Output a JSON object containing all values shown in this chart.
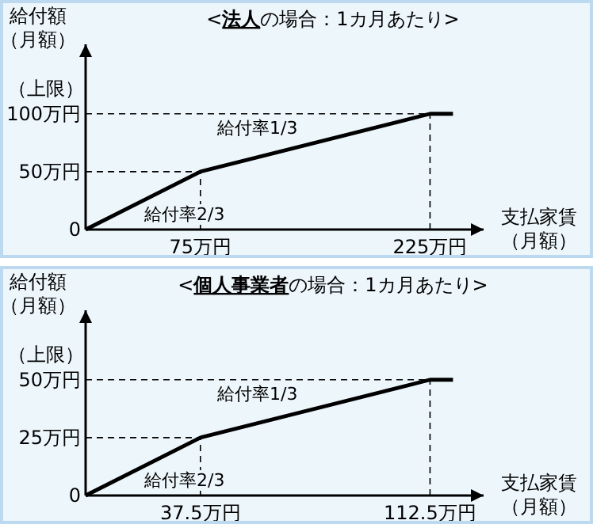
{
  "chart_data": [
    {
      "type": "line",
      "title": "<**法人**の場合：1カ月あたり>",
      "xlabel": "支払家賃（月額）",
      "ylabel": "給付額（月額）",
      "x": [
        0,
        75,
        225,
        240
      ],
      "series": [
        {
          "color": "#000000",
          "values": [
            0,
            50,
            100,
            100
          ]
        }
      ],
      "xlim": [
        0,
        260
      ],
      "ylim": [
        0,
        160
      ],
      "xticks": [
        {
          "value": 75,
          "label": "75万円"
        },
        {
          "value": 225,
          "label": "225万円"
        }
      ],
      "yticks": [
        0,
        {
          "value": 50,
          "label": "50万円"
        },
        {
          "value": 100,
          "label": "100万円"
        }
      ],
      "ref_lines": [
        {
          "axis": "y",
          "value": 50,
          "line_style": "dashed"
        },
        {
          "axis": "y",
          "value": 100,
          "line_style": "dashed"
        },
        {
          "axis": "x",
          "value": 75,
          "line_style": "dashed"
        },
        {
          "axis": "x",
          "value": 225,
          "line_style": "dashed"
        }
      ],
      "annotations": [
        "（上限）",
        "給付率2/3",
        "給付率1/3"
      ],
      "marker": "none",
      "line_style": "solid",
      "grid": false
    },
    {
      "type": "line",
      "title": "<**個人事業者**の場合：1カ月あたり>",
      "xlabel": "支払家賃（月額）",
      "ylabel": "給付額（月額）",
      "x": [
        0,
        37.5,
        112.5,
        120
      ],
      "series": [
        {
          "color": "#000000",
          "values": [
            0,
            25,
            50,
            50
          ]
        }
      ],
      "xlim": [
        0,
        130
      ],
      "ylim": [
        0,
        80
      ],
      "xticks": [
        {
          "value": 37.5,
          "label": "37.5万円"
        },
        {
          "value": 112.5,
          "label": "112.5万円"
        }
      ],
      "yticks": [
        0,
        {
          "value": 25,
          "label": "25万円"
        },
        {
          "value": 50,
          "label": "50万円"
        }
      ],
      "ref_lines": [
        {
          "axis": "y",
          "value": 25,
          "line_style": "dashed"
        },
        {
          "axis": "y",
          "value": 50,
          "line_style": "dashed"
        },
        {
          "axis": "x",
          "value": 37.5,
          "line_style": "dashed"
        },
        {
          "axis": "x",
          "value": 112.5,
          "line_style": "dashed"
        }
      ],
      "annotations": [
        "（上限）",
        "給付率2/3",
        "給付率1/3"
      ],
      "marker": "none",
      "line_style": "solid",
      "grid": false
    }
  ]
}
